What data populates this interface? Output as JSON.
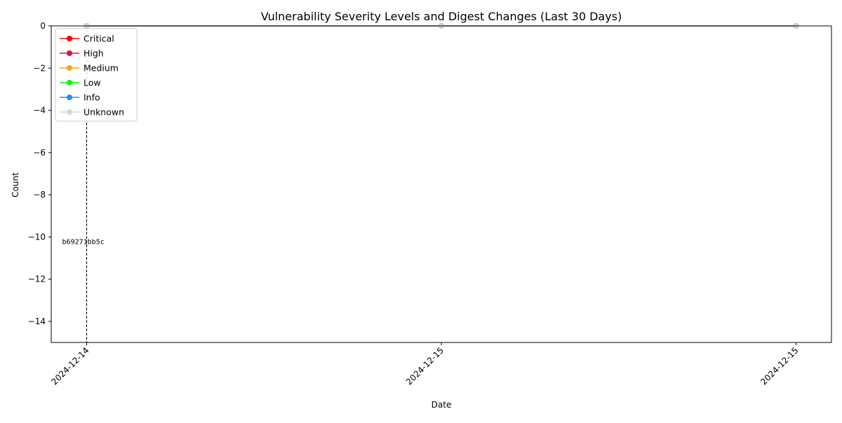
{
  "chart_data": {
    "type": "line",
    "title": "Vulnerability Severity Levels and Digest Changes (Last 30 Days)",
    "xlabel": "Date",
    "ylabel": "Count",
    "categories": [
      "2024-12-14",
      "2024-12-15",
      "2024-12-15"
    ],
    "ylim": [
      -15,
      0
    ],
    "yticks": [
      0,
      -2,
      -4,
      -6,
      -8,
      -10,
      -12,
      -14
    ],
    "grid": false,
    "legend_position": "top-left",
    "series": [
      {
        "name": "Critical",
        "color": "#ff0000",
        "values": [
          0,
          0,
          0
        ]
      },
      {
        "name": "High",
        "color": "#dc143c",
        "values": [
          0,
          0,
          0
        ]
      },
      {
        "name": "Medium",
        "color": "#ffa500",
        "values": [
          0,
          0,
          0
        ]
      },
      {
        "name": "Low",
        "color": "#00ff00",
        "values": [
          0,
          0,
          0
        ]
      },
      {
        "name": "Info",
        "color": "#1e90ff",
        "values": [
          0,
          0,
          0
        ]
      },
      {
        "name": "Unknown",
        "color": "#d3d3d3",
        "values": [
          0,
          0,
          0
        ]
      }
    ],
    "annotations": [
      {
        "x_index": 0,
        "text": "b69271bb5c",
        "y": -10.2
      }
    ]
  }
}
